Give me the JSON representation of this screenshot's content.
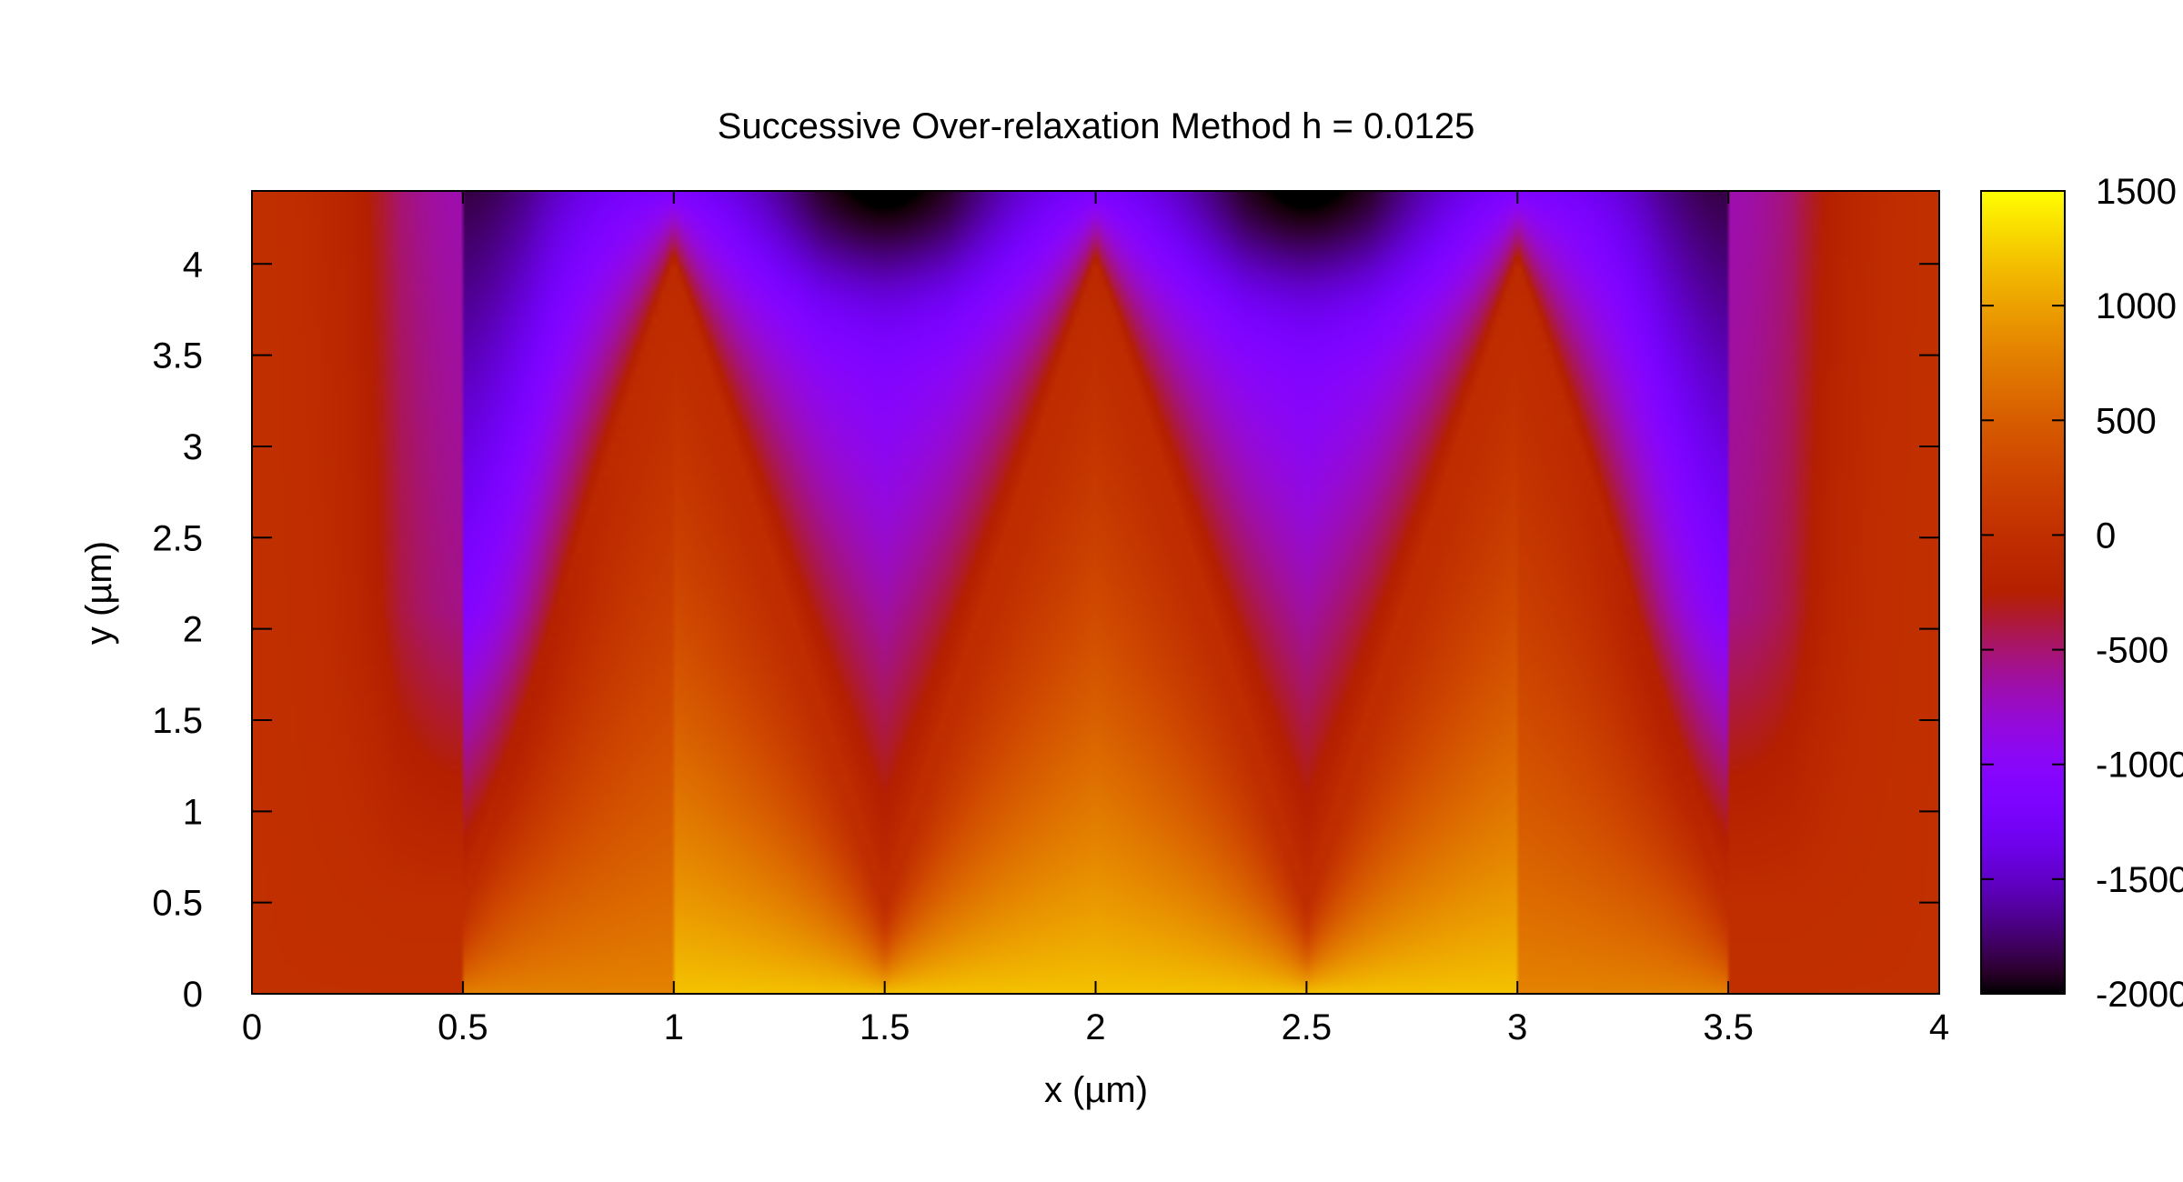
{
  "chart_data": {
    "type": "heatmap",
    "title": "Successive Over-relaxation Method h = 0.0125",
    "xlabel": "x (µm)",
    "ylabel": "y (µm)",
    "xlim": [
      0,
      4
    ],
    "ylim": [
      0,
      4.4
    ],
    "x_ticks": [
      "0",
      "0.5",
      "1",
      "1.5",
      "2",
      "2.5",
      "3",
      "3.5",
      "4"
    ],
    "x_tick_values": [
      0,
      0.5,
      1,
      1.5,
      2,
      2.5,
      3,
      3.5,
      4
    ],
    "y_ticks": [
      "0",
      "0.5",
      "1",
      "1.5",
      "2",
      "2.5",
      "3",
      "3.5",
      "4"
    ],
    "y_tick_values": [
      0,
      0.5,
      1,
      1.5,
      2,
      2.5,
      3,
      3.5,
      4
    ],
    "colorbar": {
      "range": [
        -2000,
        1500
      ],
      "ticks": [
        "1500",
        "1000",
        "500",
        "0",
        "-500",
        "-1000",
        "-1500",
        "-2000"
      ],
      "tick_values": [
        1500,
        1000,
        500,
        0,
        -500,
        -1000,
        -1500,
        -2000
      ],
      "colormap": "gnuplot pm3d rgbformulae 7,5,15"
    },
    "grid": false,
    "surface": {
      "boundary": "sawtooth electrode: peaks at x=1,2,3 (y≈4.0), valleys at x=0.5,1.5,2.5,3.5 (y≈0.5)",
      "features": [
        {
          "x": 2.0,
          "y": 0.0,
          "value": 1200
        },
        {
          "x": 1.0,
          "y": 0.0,
          "value": 800
        },
        {
          "x": 3.0,
          "y": 0.0,
          "value": 800
        },
        {
          "x": 1.5,
          "y": 4.4,
          "value": -2000
        },
        {
          "x": 2.5,
          "y": 4.4,
          "value": -2000
        },
        {
          "x": 0.0,
          "y": 2.0,
          "value": 0
        },
        {
          "x": 4.0,
          "y": 2.0,
          "value": 0
        }
      ]
    }
  }
}
